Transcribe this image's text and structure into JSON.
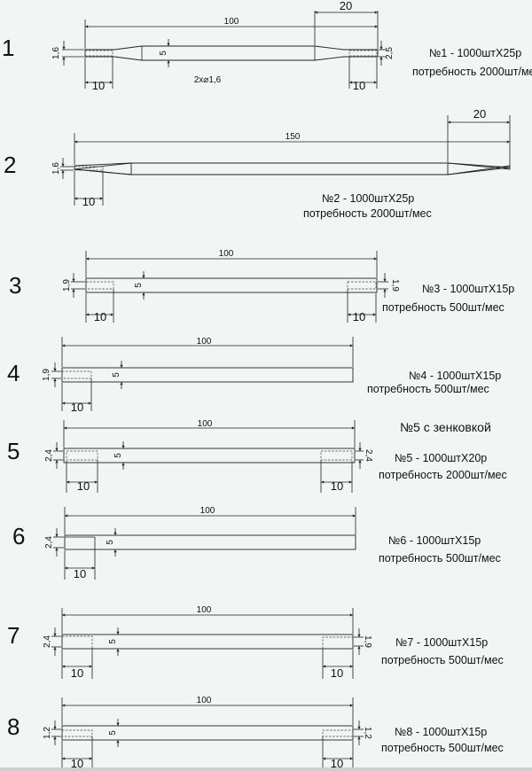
{
  "parts": [
    {
      "number": "1",
      "length_dim": "100",
      "taper_dim": "20",
      "left_dia": "1,6",
      "body_dia": "5",
      "right_dia": "2,5",
      "left_hole": "10",
      "right_hole": "10",
      "holes_note": "2х⌀1,6",
      "order": "№1 - 1000штХ25р",
      "demand": "потребность 2000шт/мес"
    },
    {
      "number": "2",
      "length_dim": "150",
      "taper_dim": "20",
      "left_dia": "1,6",
      "left_hole": "10",
      "order": "№2 - 1000штХ25р",
      "demand": "потребность 2000шт/мес"
    },
    {
      "number": "3",
      "length_dim": "100",
      "left_dia": "1,9",
      "body_dia": "5",
      "right_dia": "1,9",
      "left_hole": "10",
      "right_hole": "10",
      "order": "№3 - 1000штХ15р",
      "demand": "потребность 500шт/мес"
    },
    {
      "number": "4",
      "length_dim": "100",
      "left_dia": "1,9",
      "body_dia": "5",
      "left_hole": "10",
      "order": "№4 - 1000штХ15р",
      "demand": "потребность 500шт/мес"
    },
    {
      "number": "5",
      "header": "№5 с зенковкой",
      "length_dim": "100",
      "left_dia": "2,4",
      "body_dia": "5",
      "right_dia": "2,4",
      "left_hole": "10",
      "right_hole": "10",
      "order": "№5 - 1000штХ20р",
      "demand": "потребность 2000шт/мес"
    },
    {
      "number": "6",
      "length_dim": "100",
      "left_dia": "2,4",
      "body_dia": "5",
      "left_hole": "10",
      "order": "№6 - 1000штХ15р",
      "demand": "потребность 500шт/мес"
    },
    {
      "number": "7",
      "length_dim": "100",
      "left_dia": "2,4",
      "body_dia": "5",
      "right_dia": "1,9",
      "left_hole": "10",
      "right_hole": "10",
      "order": "№7 - 1000штХ15р",
      "demand": "потребность 500шт/мес"
    },
    {
      "number": "8",
      "length_dim": "100",
      "left_dia": "1,2",
      "body_dia": "5",
      "right_dia": "1,2",
      "left_hole": "10",
      "right_hole": "10",
      "order": "№8 - 1000штХ15р",
      "demand": "потребность 500шт/мес"
    }
  ]
}
